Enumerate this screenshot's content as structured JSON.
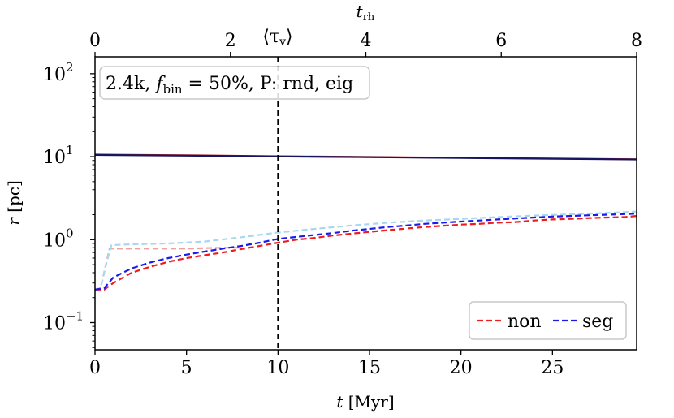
{
  "chart_data": {
    "type": "line",
    "title": "",
    "xlabel": {
      "base": "t",
      "unit": "[Myr]"
    },
    "ylabel": {
      "base": "r",
      "unit": "[pc]"
    },
    "top_axis_label": {
      "base": "t",
      "sub": "rh"
    },
    "xlim": [
      0,
      29.6
    ],
    "ylim": [
      0.047,
      160
    ],
    "yscale": "log",
    "x_ticks": [
      0,
      5,
      10,
      15,
      20,
      25
    ],
    "x_tick_labels": [
      "0",
      "5",
      "10",
      "15",
      "20",
      "25"
    ],
    "y_ticks": [
      0.1,
      1,
      10,
      100
    ],
    "y_tick_labels": [
      {
        "base": "10",
        "exp": "−1"
      },
      {
        "base": "10",
        "exp": "0"
      },
      {
        "base": "10",
        "exp": "1"
      },
      {
        "base": "10",
        "exp": "2"
      }
    ],
    "top_ticks": [
      0,
      2,
      4,
      6,
      8
    ],
    "top_tick_labels": [
      "0",
      "2",
      "4",
      "6",
      "8"
    ],
    "trh_myr": 3.7,
    "vline": {
      "x": 10,
      "label": "⟨τ",
      "label_sub": "v",
      "label_end": "⟩"
    },
    "annotation": {
      "parts": [
        "2.4k, ",
        "f",
        "bin",
        " = 50%, P: rnd, eig"
      ]
    },
    "legend": {
      "position": "bottom-right",
      "entries": [
        {
          "name": "non",
          "color": "#ee1c1c"
        },
        {
          "name": "seg",
          "color": "#1a1aee"
        }
      ]
    },
    "series": [
      {
        "name": "non-outer",
        "style": "solid",
        "color": "#c0201c",
        "x": [
          0,
          5,
          10,
          15,
          20,
          25,
          29.6
        ],
        "y": [
          10.6,
          10.4,
          10.1,
          9.9,
          9.7,
          9.5,
          9.3
        ]
      },
      {
        "name": "seg-outer",
        "style": "solid",
        "color": "#161660",
        "x": [
          0,
          5,
          10,
          15,
          20,
          25,
          29.6
        ],
        "y": [
          10.5,
          10.3,
          10.05,
          9.85,
          9.65,
          9.45,
          9.25
        ]
      },
      {
        "name": "non-low",
        "style": "dashed",
        "color": "#f4a09a",
        "x": [
          0,
          0.3,
          0.6,
          0.8,
          1.5,
          3,
          5,
          7,
          8
        ],
        "y": [
          0.25,
          0.26,
          0.5,
          0.78,
          0.78,
          0.78,
          0.78,
          0.8,
          0.8
        ]
      },
      {
        "name": "seg-low",
        "style": "dashed",
        "color": "#a8d8ee",
        "x": [
          0,
          0.3,
          0.6,
          0.9,
          2,
          4,
          6,
          8,
          10,
          12,
          14,
          16,
          18,
          20,
          22,
          24,
          26,
          28,
          29.6
        ],
        "y": [
          0.25,
          0.26,
          0.5,
          0.86,
          0.88,
          0.9,
          0.95,
          1.07,
          1.22,
          1.35,
          1.48,
          1.6,
          1.7,
          1.78,
          1.87,
          1.95,
          2.02,
          2.1,
          2.18
        ]
      },
      {
        "name": "non",
        "style": "dashed",
        "color": "#ee1c1c",
        "x": [
          0,
          0.5,
          1,
          2,
          3,
          4,
          5,
          6,
          7,
          8,
          9,
          10,
          11,
          12,
          13,
          14,
          15,
          16,
          17,
          18,
          19,
          20,
          21,
          22,
          23,
          24,
          25,
          26,
          27,
          28,
          29,
          29.6
        ],
        "y": [
          0.25,
          0.25,
          0.3,
          0.4,
          0.47,
          0.54,
          0.6,
          0.65,
          0.7,
          0.77,
          0.84,
          0.92,
          1.0,
          1.05,
          1.12,
          1.18,
          1.24,
          1.3,
          1.36,
          1.42,
          1.47,
          1.52,
          1.55,
          1.6,
          1.63,
          1.7,
          1.75,
          1.78,
          1.82,
          1.85,
          1.88,
          1.93
        ]
      },
      {
        "name": "seg",
        "style": "dashed",
        "color": "#1a1aee",
        "x": [
          0,
          0.5,
          1,
          2,
          3,
          4,
          5,
          6,
          7,
          8,
          9,
          10,
          11,
          12,
          13,
          14,
          15,
          16,
          17,
          18,
          19,
          20,
          21,
          22,
          23,
          24,
          25,
          26,
          27,
          28,
          29,
          29.6
        ],
        "y": [
          0.25,
          0.26,
          0.35,
          0.45,
          0.53,
          0.6,
          0.66,
          0.72,
          0.78,
          0.84,
          0.92,
          1.02,
          1.08,
          1.14,
          1.2,
          1.28,
          1.35,
          1.42,
          1.48,
          1.55,
          1.6,
          1.65,
          1.7,
          1.75,
          1.8,
          1.85,
          1.9,
          1.93,
          1.97,
          2.0,
          2.03,
          2.06
        ]
      }
    ]
  }
}
